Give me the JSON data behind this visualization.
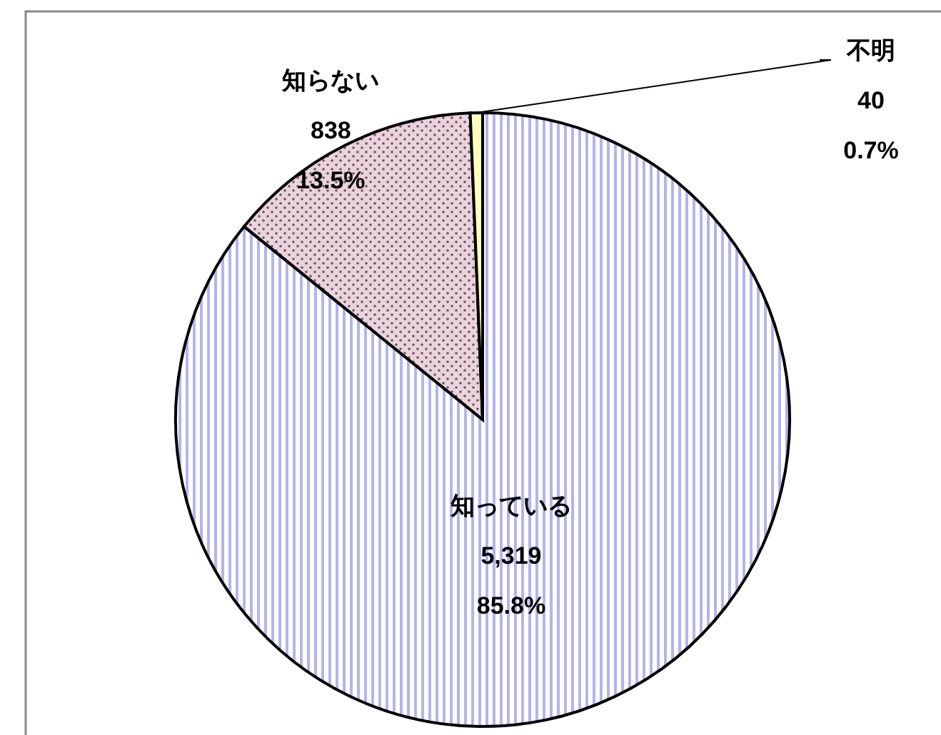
{
  "chart_data": {
    "type": "pie",
    "categories": [
      "知っている",
      "知らない",
      "不明"
    ],
    "values": [
      5319,
      838,
      40
    ],
    "value_labels": [
      "5,319\n85.8%",
      "838\n13.5%",
      "40\n0.7%"
    ],
    "colors": [
      "#b4b4ec",
      "#e8d4dc",
      "#ffffc0"
    ]
  }
}
